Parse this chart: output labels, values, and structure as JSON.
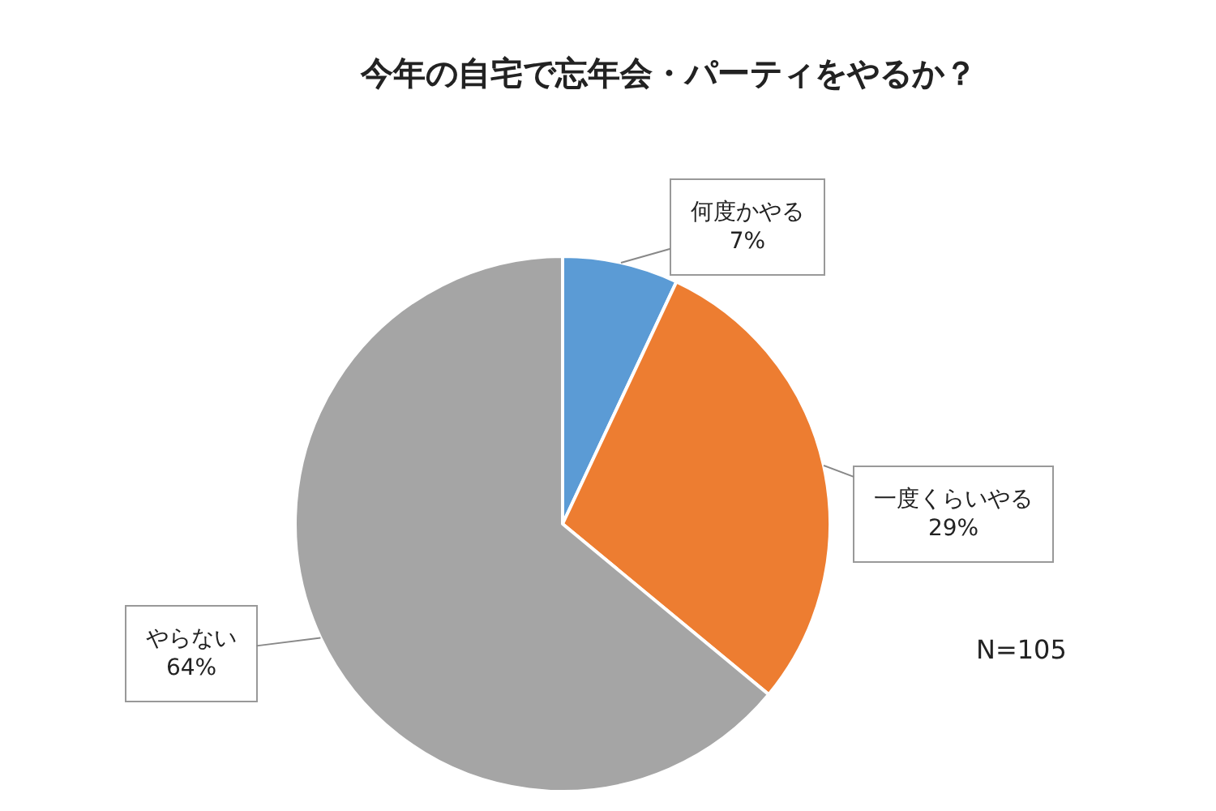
{
  "chart_data": {
    "type": "pie",
    "title": "今年の自宅で忘年会・パーティをやるか？",
    "categories": [
      "何度かやる",
      "一度くらいやる",
      "やらない"
    ],
    "values": [
      7,
      29,
      64
    ],
    "colors": [
      "#5b9bd5",
      "#ed7d31",
      "#a5a5a5"
    ],
    "value_labels": [
      "7%",
      "29%",
      "64%"
    ],
    "legend": false,
    "annotations": [
      "N=105"
    ]
  }
}
